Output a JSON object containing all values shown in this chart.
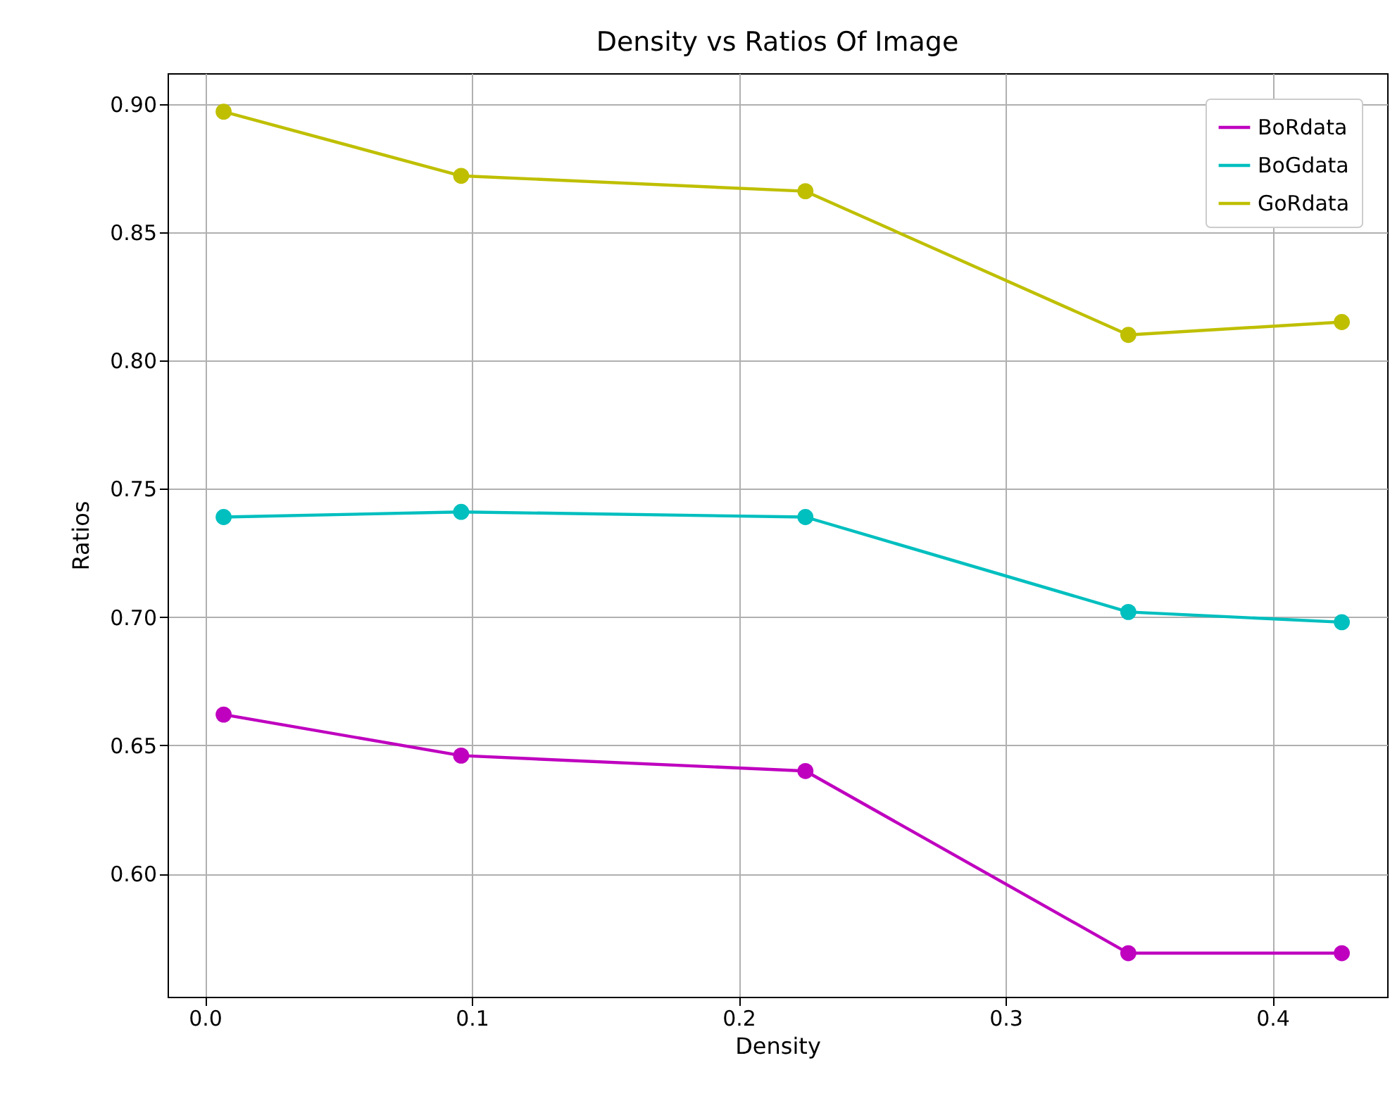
{
  "chart_data": {
    "type": "line",
    "title": "Density vs Ratios Of Image",
    "xlabel": "Density",
    "ylabel": "Ratios",
    "x": [
      0.007,
      0.096,
      0.225,
      0.346,
      0.426
    ],
    "series": [
      {
        "name": "BoRdata",
        "color": "#bf00bf",
        "values": [
          0.662,
          0.646,
          0.64,
          0.569,
          0.569
        ]
      },
      {
        "name": "BoGdata",
        "color": "#00bfbf",
        "values": [
          0.739,
          0.741,
          0.739,
          0.702,
          0.698
        ]
      },
      {
        "name": "GoRdata",
        "color": "#bfbf00",
        "values": [
          0.897,
          0.872,
          0.866,
          0.81,
          0.815
        ]
      }
    ],
    "xlim": [
      -0.014,
      0.443
    ],
    "ylim": [
      0.552,
      0.912
    ],
    "xticks": [
      {
        "value": 0,
        "label": "0.0"
      },
      0.1,
      0.2,
      0.3,
      0.4
    ],
    "yticks": [
      {
        "value": 0.6,
        "label": "0.60"
      },
      0.65,
      {
        "value": 0.7,
        "label": "0.70"
      },
      0.75,
      {
        "value": 0.8,
        "label": "0.80"
      },
      0.85,
      {
        "value": 0.9,
        "label": "0.90"
      }
    ],
    "grid": true,
    "legend": "top right",
    "marker": "circle",
    "line_style": "solid"
  }
}
